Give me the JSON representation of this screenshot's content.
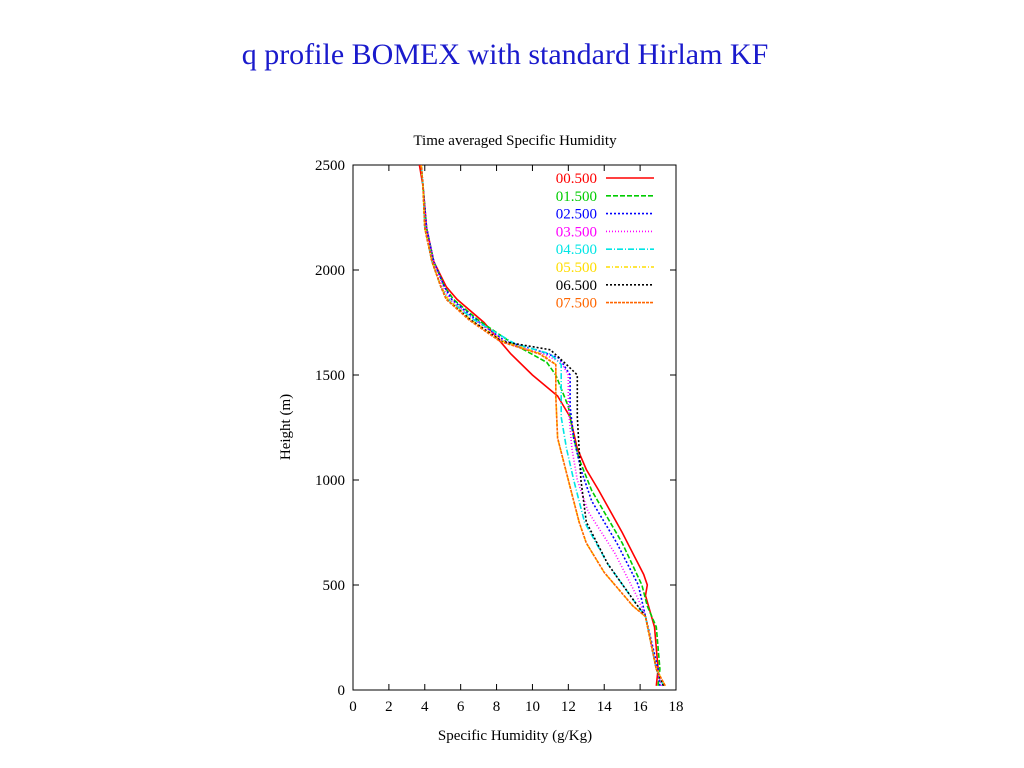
{
  "slide": {
    "title": "q profile BOMEX with standard Hirlam KF"
  },
  "chart_data": {
    "type": "line",
    "title": "Time averaged Specific Humidity",
    "xlabel": "Specific Humidity (g/Kg)",
    "ylabel": "Height (m)",
    "xlim": [
      0,
      18
    ],
    "ylim": [
      0,
      2500
    ],
    "xticks": [
      0,
      2,
      4,
      6,
      8,
      10,
      12,
      14,
      16,
      18
    ],
    "yticks": [
      0,
      500,
      1000,
      1500,
      2000,
      2500
    ],
    "grid": false,
    "legend_position": "top-right",
    "series": [
      {
        "name": "00.500",
        "color": "#ff0000",
        "dash": "",
        "x": [
          16.9,
          17.0,
          16.8,
          16.3,
          16.4,
          16.2,
          15.0,
          13.7,
          13.0,
          12.5,
          12.1,
          11.4,
          10.0,
          8.8,
          7.3,
          5.8,
          5.2,
          4.5,
          4.1,
          3.9,
          3.7
        ],
        "y": [
          20,
          100,
          300,
          450,
          500,
          550,
          750,
          950,
          1050,
          1150,
          1300,
          1400,
          1500,
          1600,
          1750,
          1860,
          1920,
          2040,
          2200,
          2400,
          2500
        ]
      },
      {
        "name": "01.500",
        "color": "#00cc00",
        "dash": "5,2",
        "x": [
          17.0,
          17.1,
          16.9,
          16.4,
          16.1,
          15.0,
          13.3,
          12.6,
          12.3,
          12.0,
          11.3,
          10.8,
          8.9,
          7.0,
          5.6,
          5.1,
          4.5,
          4.1,
          3.9,
          3.8
        ],
        "y": [
          20,
          100,
          300,
          400,
          500,
          700,
          950,
          1100,
          1200,
          1350,
          1500,
          1560,
          1650,
          1760,
          1860,
          1920,
          2040,
          2200,
          2400,
          2500
        ]
      },
      {
        "name": "02.500",
        "color": "#0000ff",
        "dash": "2,2",
        "x": [
          17.1,
          17.0,
          16.3,
          15.9,
          14.7,
          13.3,
          12.7,
          12.3,
          12.1,
          12.1,
          11.5,
          10.2,
          8.5,
          6.9,
          5.5,
          5.1,
          4.5,
          4.1,
          3.9,
          3.8
        ],
        "y": [
          20,
          100,
          350,
          500,
          700,
          900,
          1050,
          1200,
          1350,
          1500,
          1580,
          1620,
          1660,
          1760,
          1860,
          1920,
          2040,
          2200,
          2400,
          2500
        ]
      },
      {
        "name": "03.500",
        "color": "#ff00ff",
        "dash": "1,2",
        "x": [
          17.2,
          16.9,
          16.3,
          15.8,
          14.6,
          13.1,
          12.5,
          12.2,
          12.0,
          12.0,
          11.6,
          10.6,
          8.6,
          6.8,
          5.4,
          5.0,
          4.5,
          4.1,
          3.9,
          3.8
        ],
        "y": [
          20,
          100,
          350,
          450,
          650,
          850,
          1000,
          1150,
          1350,
          1500,
          1560,
          1600,
          1650,
          1760,
          1860,
          1920,
          2040,
          2200,
          2400,
          2500
        ]
      },
      {
        "name": "04.500",
        "color": "#00e5e5",
        "dash": "6,2,1,2",
        "x": [
          17.3,
          16.9,
          16.3,
          15.7,
          14.2,
          12.9,
          12.3,
          11.9,
          11.6,
          11.6,
          11.6,
          11.0,
          9.0,
          6.8,
          5.3,
          4.9,
          4.4,
          4.0,
          3.9,
          3.8
        ],
        "y": [
          20,
          100,
          350,
          420,
          600,
          800,
          1000,
          1150,
          1300,
          1450,
          1550,
          1600,
          1650,
          1760,
          1860,
          1920,
          2040,
          2200,
          2400,
          2500
        ]
      },
      {
        "name": "05.500",
        "color": "#ffdd00",
        "dash": "4,2,1,2",
        "x": [
          17.4,
          16.9,
          16.3,
          15.6,
          14.0,
          13.0,
          12.6,
          12.0,
          11.4,
          11.3,
          11.3,
          10.5,
          8.4,
          6.6,
          5.3,
          4.9,
          4.4,
          4.0,
          3.9,
          3.8
        ],
        "y": [
          20,
          100,
          350,
          400,
          560,
          700,
          800,
          1000,
          1200,
          1400,
          1550,
          1600,
          1660,
          1760,
          1860,
          1920,
          2040,
          2200,
          2400,
          2500
        ]
      },
      {
        "name": "06.500",
        "color": "#000000",
        "dash": "2,2",
        "x": [
          17.3,
          16.9,
          16.3,
          15.7,
          14.2,
          13.0,
          12.7,
          12.6,
          12.5,
          12.5,
          11.9,
          11.0,
          8.3,
          6.6,
          5.2,
          4.9,
          4.4,
          4.0,
          3.9,
          3.8
        ],
        "y": [
          20,
          100,
          350,
          420,
          600,
          800,
          1000,
          1150,
          1300,
          1500,
          1550,
          1620,
          1660,
          1760,
          1860,
          1920,
          2040,
          2200,
          2400,
          2500
        ]
      },
      {
        "name": "07.500",
        "color": "#ff6600",
        "dash": "3,1",
        "x": [
          17.4,
          16.9,
          16.3,
          15.6,
          14.0,
          13.0,
          12.6,
          12.0,
          11.4,
          11.3,
          11.3,
          10.4,
          8.2,
          6.5,
          5.2,
          4.9,
          4.4,
          4.0,
          3.9,
          3.8
        ],
        "y": [
          20,
          100,
          350,
          400,
          560,
          700,
          800,
          1000,
          1200,
          1400,
          1550,
          1600,
          1660,
          1760,
          1860,
          1920,
          2040,
          2200,
          2400,
          2500
        ]
      }
    ]
  }
}
